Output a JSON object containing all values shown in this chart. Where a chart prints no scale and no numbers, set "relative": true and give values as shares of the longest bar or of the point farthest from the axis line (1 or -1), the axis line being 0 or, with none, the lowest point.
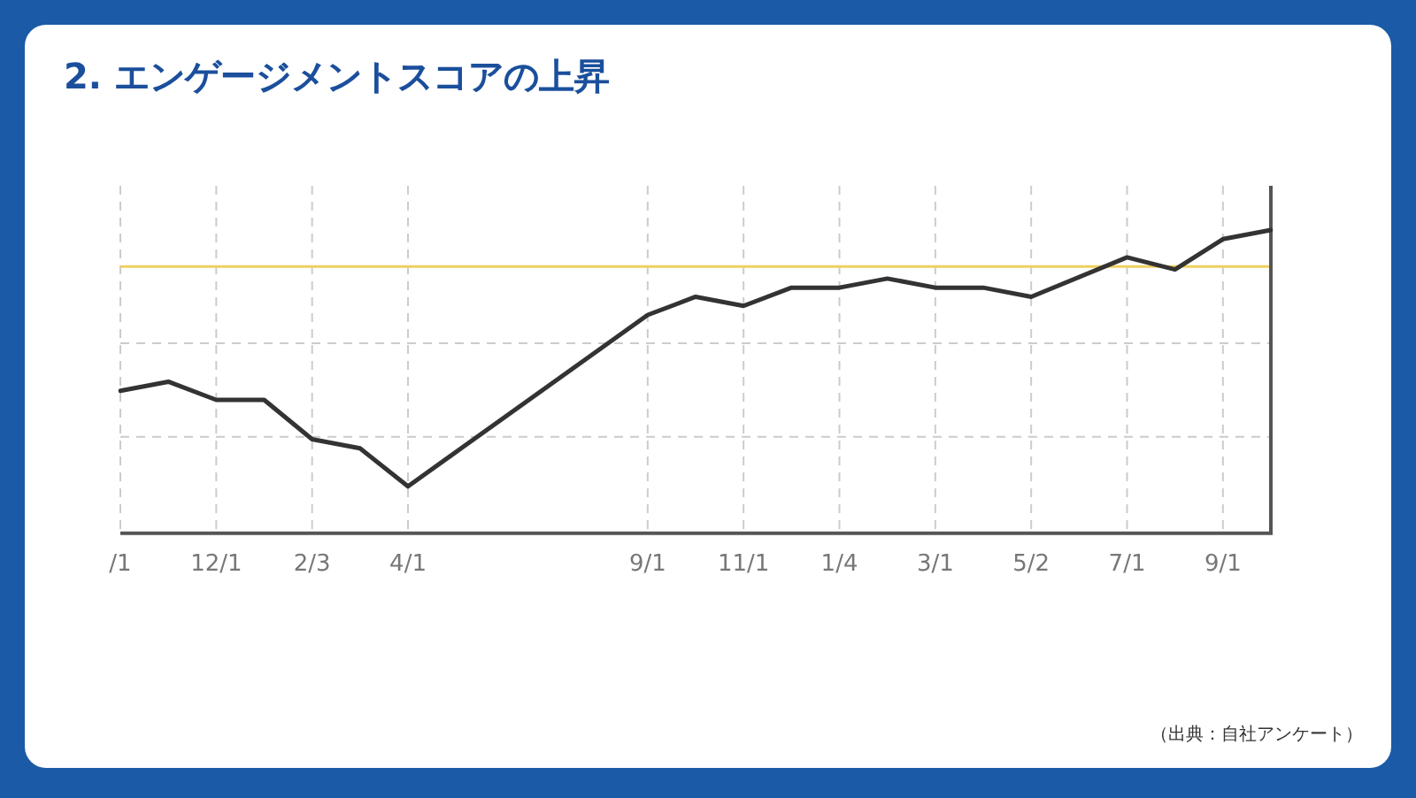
{
  "chart_data": {
    "type": "line",
    "title": "2. エンゲージメントスコアの上昇",
    "relative": true,
    "categories": [
      "/1",
      null,
      "12/1",
      null,
      "2/3",
      null,
      "4/1",
      null,
      null,
      null,
      null,
      "9/1",
      null,
      "11/1",
      null,
      "1/4",
      null,
      "3/1",
      null,
      "5/2",
      null,
      "7/1",
      null,
      "9/1",
      null
    ],
    "series": [
      {
        "color": "#333333",
        "values": [
          0.47,
          0.5,
          0.44,
          0.44,
          0.31,
          0.28,
          0.155,
          null,
          null,
          null,
          null,
          0.72,
          0.78,
          0.75,
          0.81,
          0.81,
          0.84,
          0.81,
          0.81,
          0.78,
          null,
          0.91,
          0.87,
          0.97,
          1
        ]
      }
    ],
    "ref_lines": [
      {
        "axis": "y",
        "value": 0.88,
        "color": "#f0d060"
      }
    ],
    "grid": true,
    "legend": false,
    "marker": "none",
    "line_style": "solid",
    "annotations": [
      "（出典：自社アンケート）"
    ]
  }
}
